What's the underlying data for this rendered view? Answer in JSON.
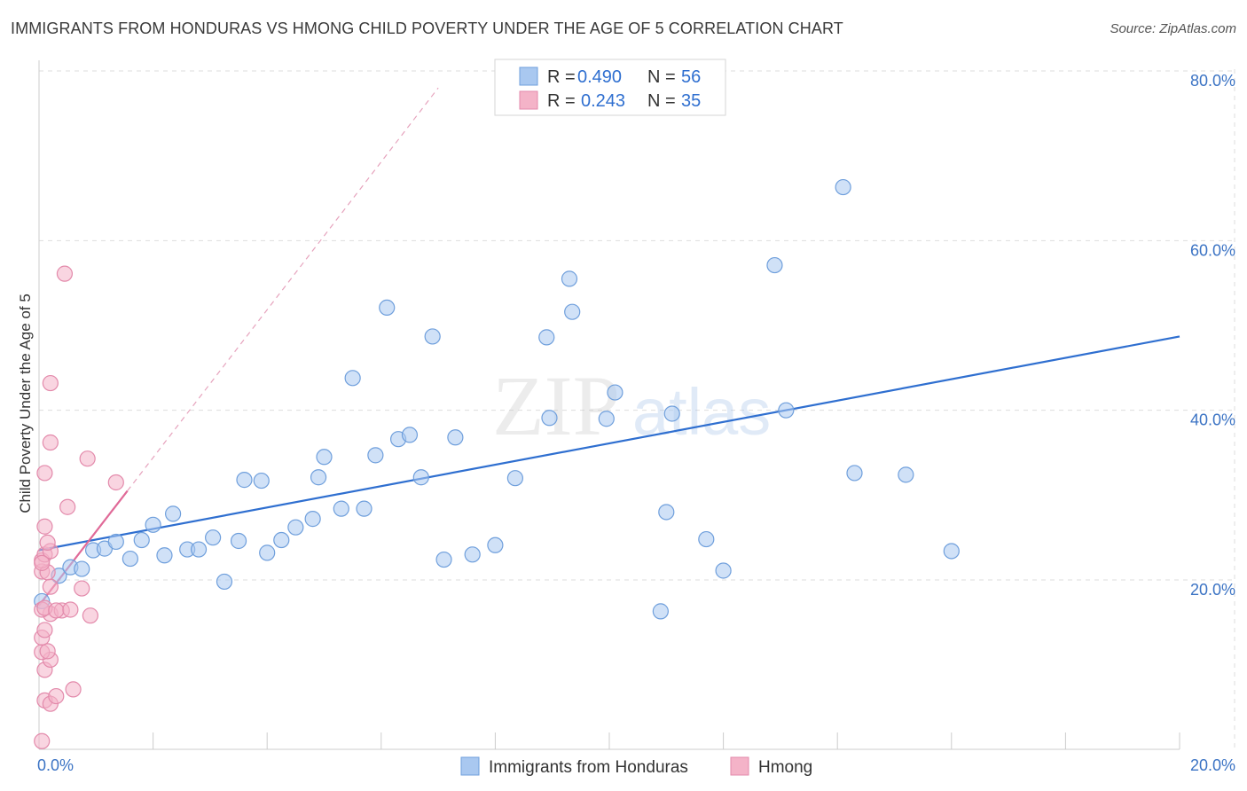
{
  "title": "IMMIGRANTS FROM HONDURAS VS HMONG CHILD POVERTY UNDER THE AGE OF 5 CORRELATION CHART",
  "source": "Source: ZipAtlas.com",
  "watermark": "ZIPatlas",
  "colors": {
    "blue": "#2f6fd0",
    "blue_fill": "#a9c8f0",
    "pink": "#e06a98",
    "pink_fill": "#f4b3c8",
    "grid": "#dddddd",
    "tick": "#3b73c4"
  },
  "chart_data": {
    "type": "scatter",
    "title": "IMMIGRANTS FROM HONDURAS VS HMONG CHILD POVERTY UNDER THE AGE OF 5 CORRELATION CHART",
    "xlabel": "",
    "ylabel": "Child Poverty Under the Age of 5",
    "xlim": [
      0,
      20
    ],
    "ylim": [
      0,
      82
    ],
    "x_tick_labels": [
      {
        "value": 0,
        "label": "0.0%"
      },
      {
        "value": 20,
        "label": "20.0%"
      }
    ],
    "y_tick_labels": [
      {
        "value": 20,
        "label": "20.0%"
      },
      {
        "value": 40,
        "label": "40.0%"
      },
      {
        "value": 60,
        "label": "60.0%"
      },
      {
        "value": 80,
        "label": "80.0%"
      }
    ],
    "legend": {
      "entries": [
        {
          "r_label": "R =",
          "r_value": "0.490",
          "n_label": "N =",
          "n_value": "56"
        },
        {
          "r_label": "R =",
          "r_value": "0.243",
          "n_label": "N =",
          "n_value": "35"
        }
      ]
    },
    "series": [
      {
        "name": "Immigrants from Honduras",
        "color": "blue",
        "points": [
          [
            0.05,
            17.5
          ],
          [
            0.35,
            20.5
          ],
          [
            0.55,
            21.5
          ],
          [
            0.75,
            21.3
          ],
          [
            0.95,
            23.5
          ],
          [
            1.15,
            23.7
          ],
          [
            1.35,
            24.5
          ],
          [
            1.6,
            22.5
          ],
          [
            1.8,
            24.7
          ],
          [
            2.0,
            26.5
          ],
          [
            2.2,
            22.9
          ],
          [
            2.35,
            27.8
          ],
          [
            2.6,
            23.6
          ],
          [
            2.8,
            23.6
          ],
          [
            3.05,
            25.0
          ],
          [
            3.25,
            19.8
          ],
          [
            3.5,
            24.6
          ],
          [
            3.6,
            31.8
          ],
          [
            3.9,
            31.7
          ],
          [
            4.0,
            23.2
          ],
          [
            4.25,
            24.7
          ],
          [
            4.5,
            26.2
          ],
          [
            4.8,
            27.2
          ],
          [
            4.9,
            32.1
          ],
          [
            5.0,
            34.5
          ],
          [
            5.3,
            28.4
          ],
          [
            5.5,
            43.8
          ],
          [
            5.7,
            28.4
          ],
          [
            5.9,
            34.7
          ],
          [
            6.1,
            52.1
          ],
          [
            6.3,
            36.6
          ],
          [
            6.5,
            37.1
          ],
          [
            6.7,
            32.1
          ],
          [
            6.9,
            48.7
          ],
          [
            7.1,
            22.4
          ],
          [
            7.3,
            36.8
          ],
          [
            7.6,
            23.0
          ],
          [
            8.0,
            24.1
          ],
          [
            8.35,
            32.0
          ],
          [
            8.9,
            48.6
          ],
          [
            8.95,
            39.1
          ],
          [
            9.3,
            55.5
          ],
          [
            9.35,
            51.6
          ],
          [
            9.95,
            39.0
          ],
          [
            10.1,
            42.1
          ],
          [
            10.9,
            16.3
          ],
          [
            11.0,
            28.0
          ],
          [
            11.1,
            39.6
          ],
          [
            11.7,
            24.8
          ],
          [
            12.0,
            21.1
          ],
          [
            12.9,
            57.1
          ],
          [
            13.1,
            40.0
          ],
          [
            14.1,
            66.3
          ],
          [
            14.3,
            32.6
          ],
          [
            15.2,
            32.4
          ],
          [
            16.0,
            23.4
          ]
        ],
        "trend": {
          "x": [
            0,
            20
          ],
          "y": [
            23.5,
            48.7
          ]
        }
      },
      {
        "name": "Hmong",
        "color": "pink",
        "points": [
          [
            0.05,
            1.0
          ],
          [
            0.1,
            5.8
          ],
          [
            0.2,
            5.4
          ],
          [
            0.3,
            6.3
          ],
          [
            0.6,
            7.1
          ],
          [
            0.1,
            9.4
          ],
          [
            0.2,
            10.6
          ],
          [
            0.05,
            11.5
          ],
          [
            0.15,
            11.6
          ],
          [
            0.05,
            13.2
          ],
          [
            0.1,
            14.1
          ],
          [
            0.2,
            16.0
          ],
          [
            0.05,
            16.5
          ],
          [
            0.1,
            16.7
          ],
          [
            0.4,
            16.4
          ],
          [
            0.3,
            16.4
          ],
          [
            0.55,
            16.5
          ],
          [
            0.9,
            15.8
          ],
          [
            0.2,
            19.2
          ],
          [
            0.75,
            19.0
          ],
          [
            0.05,
            21.0
          ],
          [
            0.15,
            20.9
          ],
          [
            0.05,
            22.3
          ],
          [
            0.1,
            23.0
          ],
          [
            0.2,
            23.4
          ],
          [
            0.15,
            24.4
          ],
          [
            0.1,
            26.3
          ],
          [
            0.5,
            28.6
          ],
          [
            0.1,
            32.6
          ],
          [
            1.35,
            31.5
          ],
          [
            0.85,
            34.3
          ],
          [
            0.2,
            36.2
          ],
          [
            0.2,
            43.2
          ],
          [
            0.45,
            56.1
          ],
          [
            0.05,
            22.0
          ]
        ],
        "trend": {
          "x": [
            0,
            1.55
          ],
          "y": [
            17.0,
            30.5
          ]
        },
        "trend_extension": {
          "x": [
            1.55,
            7.0
          ],
          "y": [
            30.5,
            78.0
          ]
        }
      }
    ]
  }
}
